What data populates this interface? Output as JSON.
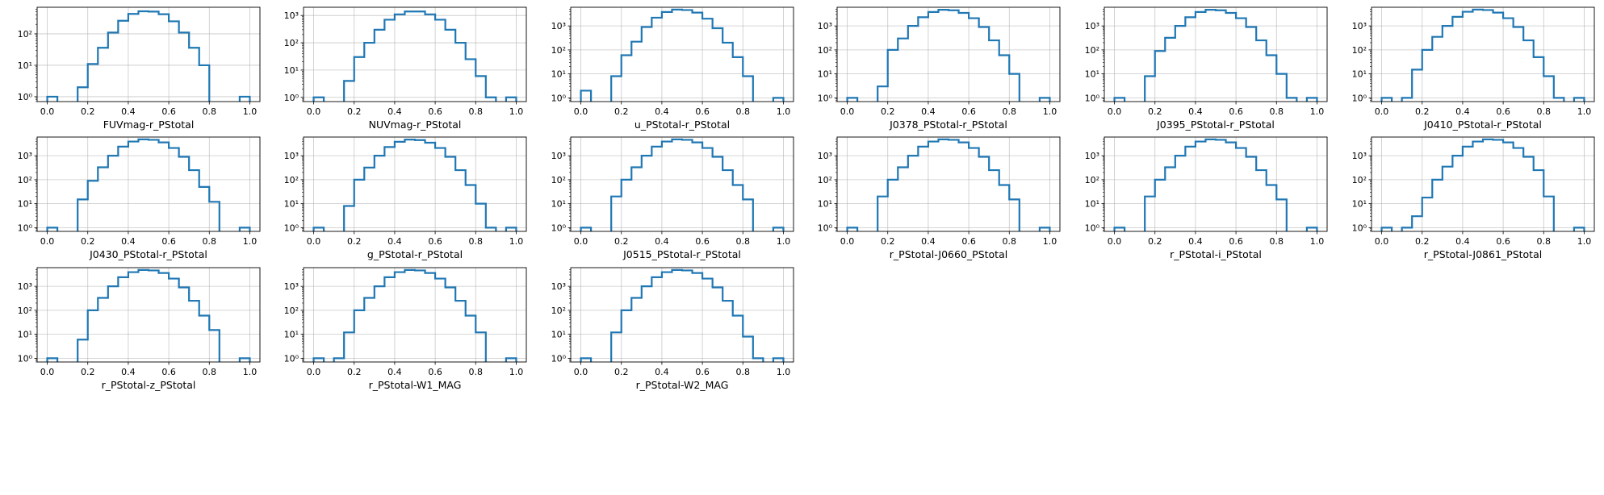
{
  "figure": {
    "colors": {
      "line": "#1f77b4",
      "grid": "#b0b0b0",
      "axis": "#000000"
    }
  },
  "chart_data": [
    {
      "type": "histogram",
      "xlabel": "FUVmag-r_PStotal",
      "yscale": "log",
      "grid": true,
      "xlim": [
        -0.05,
        1.05
      ],
      "ylim": [
        0.7,
        700
      ],
      "xticks": [
        "0.0",
        "0.2",
        "0.4",
        "0.6",
        "0.8",
        "1.0"
      ],
      "yticks": [
        "10⁰",
        "10¹",
        "10²"
      ],
      "bin_edges": [
        0,
        0.05,
        0.1,
        0.15,
        0.2,
        0.25,
        0.3,
        0.35,
        0.4,
        0.45,
        0.5,
        0.55,
        0.6,
        0.65,
        0.7,
        0.75,
        0.8,
        0.85,
        0.9,
        0.95,
        1.0
      ],
      "counts": [
        1,
        0,
        0,
        2,
        11,
        36,
        110,
        260,
        430,
        520,
        510,
        420,
        250,
        110,
        36,
        10,
        0,
        0,
        0,
        1
      ]
    },
    {
      "type": "histogram",
      "xlabel": "NUVmag-r_PStotal",
      "yscale": "log",
      "grid": true,
      "xlim": [
        -0.05,
        1.05
      ],
      "ylim": [
        0.7,
        2000
      ],
      "xticks": [
        "0.0",
        "0.2",
        "0.4",
        "0.6",
        "0.8",
        "1.0"
      ],
      "yticks": [
        "10⁰",
        "10¹",
        "10²",
        "10³"
      ],
      "bin_edges": [
        0,
        0.05,
        0.1,
        0.15,
        0.2,
        0.25,
        0.3,
        0.35,
        0.4,
        0.45,
        0.5,
        0.55,
        0.6,
        0.65,
        0.7,
        0.75,
        0.8,
        0.85,
        0.9,
        0.95,
        1.0
      ],
      "counts": [
        1,
        0,
        0,
        4,
        30,
        100,
        300,
        700,
        1100,
        1400,
        1400,
        1100,
        700,
        300,
        100,
        25,
        6,
        1,
        0,
        1
      ]
    },
    {
      "type": "histogram",
      "xlabel": "u_PStotal-r_PStotal",
      "yscale": "log",
      "grid": true,
      "xlim": [
        -0.05,
        1.05
      ],
      "ylim": [
        0.7,
        6000
      ],
      "xticks": [
        "0.0",
        "0.2",
        "0.4",
        "0.6",
        "0.8",
        "1.0"
      ],
      "yticks": [
        "10⁰",
        "10¹",
        "10²",
        "10³"
      ],
      "bin_edges": [
        0,
        0.05,
        0.1,
        0.15,
        0.2,
        0.25,
        0.3,
        0.35,
        0.4,
        0.45,
        0.5,
        0.55,
        0.6,
        0.65,
        0.7,
        0.75,
        0.8,
        0.85,
        0.9,
        0.95,
        1.0
      ],
      "counts": [
        2,
        0,
        0,
        8,
        60,
        220,
        900,
        2200,
        3800,
        4800,
        4600,
        3600,
        2000,
        800,
        200,
        50,
        8,
        0,
        0,
        1
      ]
    },
    {
      "type": "histogram",
      "xlabel": "J0378_PStotal-r_PStotal",
      "yscale": "log",
      "grid": true,
      "xlim": [
        -0.05,
        1.05
      ],
      "ylim": [
        0.7,
        6000
      ],
      "xticks": [
        "0.0",
        "0.2",
        "0.4",
        "0.6",
        "0.8",
        "1.0"
      ],
      "yticks": [
        "10⁰",
        "10¹",
        "10²",
        "10³"
      ],
      "bin_edges": [
        0,
        0.05,
        0.1,
        0.15,
        0.2,
        0.25,
        0.3,
        0.35,
        0.4,
        0.45,
        0.5,
        0.55,
        0.6,
        0.65,
        0.7,
        0.75,
        0.8,
        0.85,
        0.9,
        0.95,
        1.0
      ],
      "counts": [
        1,
        0,
        0,
        3,
        100,
        300,
        1000,
        2300,
        3800,
        4700,
        4500,
        3500,
        2100,
        900,
        250,
        60,
        10,
        0,
        0,
        1
      ]
    },
    {
      "type": "histogram",
      "xlabel": "J0395_PStotal-r_PStotal",
      "yscale": "log",
      "grid": true,
      "xlim": [
        -0.05,
        1.05
      ],
      "ylim": [
        0.7,
        6000
      ],
      "xticks": [
        "0.0",
        "0.2",
        "0.4",
        "0.6",
        "0.8",
        "1.0"
      ],
      "yticks": [
        "10⁰",
        "10¹",
        "10²",
        "10³"
      ],
      "bin_edges": [
        0,
        0.05,
        0.1,
        0.15,
        0.2,
        0.25,
        0.3,
        0.35,
        0.4,
        0.45,
        0.5,
        0.55,
        0.6,
        0.65,
        0.7,
        0.75,
        0.8,
        0.85,
        0.9,
        0.95,
        1.0
      ],
      "counts": [
        1,
        0,
        0,
        8,
        90,
        320,
        1000,
        2300,
        3800,
        4700,
        4500,
        3500,
        2100,
        900,
        250,
        60,
        10,
        1,
        0,
        1
      ]
    },
    {
      "type": "histogram",
      "xlabel": "J0410_PStotal-r_PStotal",
      "yscale": "log",
      "grid": true,
      "xlim": [
        -0.05,
        1.05
      ],
      "ylim": [
        0.7,
        6000
      ],
      "xticks": [
        "0.0",
        "0.2",
        "0.4",
        "0.6",
        "0.8",
        "1.0"
      ],
      "yticks": [
        "10⁰",
        "10¹",
        "10²",
        "10³"
      ],
      "bin_edges": [
        0,
        0.05,
        0.1,
        0.15,
        0.2,
        0.25,
        0.3,
        0.35,
        0.4,
        0.45,
        0.5,
        0.55,
        0.6,
        0.65,
        0.7,
        0.75,
        0.8,
        0.85,
        0.9,
        0.95,
        1.0
      ],
      "counts": [
        1,
        0,
        1,
        15,
        100,
        350,
        1000,
        2400,
        3900,
        4800,
        4600,
        3600,
        2100,
        900,
        250,
        50,
        8,
        1,
        0,
        1
      ]
    },
    {
      "type": "histogram",
      "xlabel": "J0430_PStotal-r_PStotal",
      "yscale": "log",
      "grid": true,
      "xlim": [
        -0.05,
        1.05
      ],
      "ylim": [
        0.7,
        6000
      ],
      "xticks": [
        "0.0",
        "0.2",
        "0.4",
        "0.6",
        "0.8",
        "1.0"
      ],
      "yticks": [
        "10⁰",
        "10¹",
        "10²",
        "10³"
      ],
      "bin_edges": [
        0,
        0.05,
        0.1,
        0.15,
        0.2,
        0.25,
        0.3,
        0.35,
        0.4,
        0.45,
        0.5,
        0.55,
        0.6,
        0.65,
        0.7,
        0.75,
        0.8,
        0.85,
        0.9,
        0.95,
        1.0
      ],
      "counts": [
        1,
        0,
        0,
        15,
        90,
        330,
        1000,
        2400,
        3900,
        4800,
        4600,
        3600,
        2100,
        900,
        250,
        50,
        12,
        0,
        0,
        1
      ]
    },
    {
      "type": "histogram",
      "xlabel": "g_PStotal-r_PStotal",
      "yscale": "log",
      "grid": true,
      "xlim": [
        -0.05,
        1.05
      ],
      "ylim": [
        0.7,
        6000
      ],
      "xticks": [
        "0.0",
        "0.2",
        "0.4",
        "0.6",
        "0.8",
        "1.0"
      ],
      "yticks": [
        "10⁰",
        "10¹",
        "10²",
        "10³"
      ],
      "bin_edges": [
        0,
        0.05,
        0.1,
        0.15,
        0.2,
        0.25,
        0.3,
        0.35,
        0.4,
        0.45,
        0.5,
        0.55,
        0.6,
        0.65,
        0.7,
        0.75,
        0.8,
        0.85,
        0.9,
        0.95,
        1.0
      ],
      "counts": [
        1,
        0,
        0,
        8,
        100,
        320,
        1000,
        2300,
        3800,
        4700,
        4500,
        3500,
        2100,
        900,
        250,
        60,
        10,
        1,
        0,
        1
      ]
    },
    {
      "type": "histogram",
      "xlabel": "J0515_PStotal-r_PStotal",
      "yscale": "log",
      "grid": true,
      "xlim": [
        -0.05,
        1.05
      ],
      "ylim": [
        0.7,
        6000
      ],
      "xticks": [
        "0.0",
        "0.2",
        "0.4",
        "0.6",
        "0.8",
        "1.0"
      ],
      "yticks": [
        "10⁰",
        "10¹",
        "10²",
        "10³"
      ],
      "bin_edges": [
        0,
        0.05,
        0.1,
        0.15,
        0.2,
        0.25,
        0.3,
        0.35,
        0.4,
        0.45,
        0.5,
        0.55,
        0.6,
        0.65,
        0.7,
        0.75,
        0.8,
        0.85,
        0.9,
        0.95,
        1.0
      ],
      "counts": [
        1,
        0,
        0,
        20,
        100,
        330,
        1000,
        2400,
        3900,
        4800,
        4600,
        3600,
        2100,
        900,
        250,
        60,
        15,
        0,
        0,
        1
      ]
    },
    {
      "type": "histogram",
      "xlabel": "r_PStotal-J0660_PStotal",
      "yscale": "log",
      "grid": true,
      "xlim": [
        -0.05,
        1.05
      ],
      "ylim": [
        0.7,
        6000
      ],
      "xticks": [
        "0.0",
        "0.2",
        "0.4",
        "0.6",
        "0.8",
        "1.0"
      ],
      "yticks": [
        "10⁰",
        "10¹",
        "10²",
        "10³"
      ],
      "bin_edges": [
        0,
        0.05,
        0.1,
        0.15,
        0.2,
        0.25,
        0.3,
        0.35,
        0.4,
        0.45,
        0.5,
        0.55,
        0.6,
        0.65,
        0.7,
        0.75,
        0.8,
        0.85,
        0.9,
        0.95,
        1.0
      ],
      "counts": [
        1,
        0,
        0,
        20,
        100,
        330,
        1000,
        2400,
        3900,
        4800,
        4600,
        3600,
        2100,
        900,
        250,
        60,
        15,
        0,
        0,
        1
      ]
    },
    {
      "type": "histogram",
      "xlabel": "r_PStotal-i_PStotal",
      "yscale": "log",
      "grid": true,
      "xlim": [
        -0.05,
        1.05
      ],
      "ylim": [
        0.7,
        6000
      ],
      "xticks": [
        "0.0",
        "0.2",
        "0.4",
        "0.6",
        "0.8",
        "1.0"
      ],
      "yticks": [
        "10⁰",
        "10¹",
        "10²",
        "10³"
      ],
      "bin_edges": [
        0,
        0.05,
        0.1,
        0.15,
        0.2,
        0.25,
        0.3,
        0.35,
        0.4,
        0.45,
        0.5,
        0.55,
        0.6,
        0.65,
        0.7,
        0.75,
        0.8,
        0.85,
        0.9,
        0.95,
        1.0
      ],
      "counts": [
        1,
        0,
        0,
        20,
        100,
        330,
        1000,
        2400,
        3900,
        4800,
        4600,
        3600,
        2100,
        900,
        250,
        60,
        15,
        0,
        0,
        1
      ]
    },
    {
      "type": "histogram",
      "xlabel": "r_PStotal-J0861_PStotal",
      "yscale": "log",
      "grid": true,
      "xlim": [
        -0.05,
        1.05
      ],
      "ylim": [
        0.7,
        6000
      ],
      "xticks": [
        "0.0",
        "0.2",
        "0.4",
        "0.6",
        "0.8",
        "1.0"
      ],
      "yticks": [
        "10⁰",
        "10¹",
        "10²",
        "10³"
      ],
      "bin_edges": [
        0,
        0.05,
        0.1,
        0.15,
        0.2,
        0.25,
        0.3,
        0.35,
        0.4,
        0.45,
        0.5,
        0.55,
        0.6,
        0.65,
        0.7,
        0.75,
        0.8,
        0.85,
        0.9,
        0.95,
        1.0
      ],
      "counts": [
        1,
        0,
        1,
        3,
        18,
        100,
        350,
        1000,
        2400,
        3900,
        4800,
        4600,
        3600,
        2100,
        900,
        250,
        20,
        0,
        0,
        1
      ]
    },
    {
      "type": "histogram",
      "xlabel": "r_PStotal-z_PStotal",
      "yscale": "log",
      "grid": true,
      "xlim": [
        -0.05,
        1.05
      ],
      "ylim": [
        0.7,
        6000
      ],
      "xticks": [
        "0.0",
        "0.2",
        "0.4",
        "0.6",
        "0.8",
        "1.0"
      ],
      "yticks": [
        "10⁰",
        "10¹",
        "10²",
        "10³"
      ],
      "bin_edges": [
        0,
        0.05,
        0.1,
        0.15,
        0.2,
        0.25,
        0.3,
        0.35,
        0.4,
        0.45,
        0.5,
        0.55,
        0.6,
        0.65,
        0.7,
        0.75,
        0.8,
        0.85,
        0.9,
        0.95,
        1.0
      ],
      "counts": [
        1,
        0,
        0,
        6,
        100,
        330,
        1000,
        2400,
        3900,
        4800,
        4600,
        3600,
        2100,
        900,
        250,
        60,
        15,
        0,
        0,
        1
      ]
    },
    {
      "type": "histogram",
      "xlabel": "r_PStotal-W1_MAG",
      "yscale": "log",
      "grid": true,
      "xlim": [
        -0.05,
        1.05
      ],
      "ylim": [
        0.7,
        6000
      ],
      "xticks": [
        "0.0",
        "0.2",
        "0.4",
        "0.6",
        "0.8",
        "1.0"
      ],
      "yticks": [
        "10⁰",
        "10¹",
        "10²",
        "10³"
      ],
      "bin_edges": [
        0,
        0.05,
        0.1,
        0.15,
        0.2,
        0.25,
        0.3,
        0.35,
        0.4,
        0.45,
        0.5,
        0.55,
        0.6,
        0.65,
        0.7,
        0.75,
        0.8,
        0.85,
        0.9,
        0.95,
        1.0
      ],
      "counts": [
        1,
        0,
        1,
        12,
        100,
        330,
        1000,
        2400,
        3900,
        4800,
        4600,
        3600,
        2100,
        900,
        250,
        60,
        12,
        0,
        0,
        1
      ]
    },
    {
      "type": "histogram",
      "xlabel": "r_PStotal-W2_MAG",
      "yscale": "log",
      "grid": true,
      "xlim": [
        -0.05,
        1.05
      ],
      "ylim": [
        0.7,
        6000
      ],
      "xticks": [
        "0.0",
        "0.2",
        "0.4",
        "0.6",
        "0.8",
        "1.0"
      ],
      "yticks": [
        "10⁰",
        "10¹",
        "10²",
        "10³"
      ],
      "bin_edges": [
        0,
        0.05,
        0.1,
        0.15,
        0.2,
        0.25,
        0.3,
        0.35,
        0.4,
        0.45,
        0.5,
        0.55,
        0.6,
        0.65,
        0.7,
        0.75,
        0.8,
        0.85,
        0.9,
        0.95,
        1.0
      ],
      "counts": [
        1,
        0,
        0,
        12,
        100,
        330,
        1000,
        2400,
        3900,
        4800,
        4600,
        3600,
        2100,
        900,
        250,
        60,
        8,
        1,
        0,
        1
      ]
    }
  ]
}
